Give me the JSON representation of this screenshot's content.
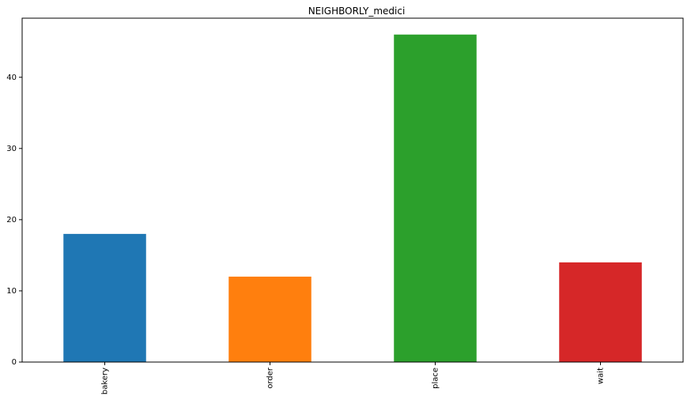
{
  "chart_data": {
    "type": "bar",
    "title": "NEIGHBORLY_medici",
    "categories": [
      "bakery",
      "order",
      "place",
      "wait"
    ],
    "values": [
      18,
      12,
      46,
      14
    ],
    "colors": [
      "#1f77b4",
      "#ff7f0e",
      "#2ca02c",
      "#d62728"
    ],
    "xlabel": "",
    "ylabel": "",
    "ylim": [
      0,
      48.3
    ],
    "yticks": [
      0,
      10,
      20,
      30,
      40
    ],
    "grid": false,
    "legend": "none"
  }
}
